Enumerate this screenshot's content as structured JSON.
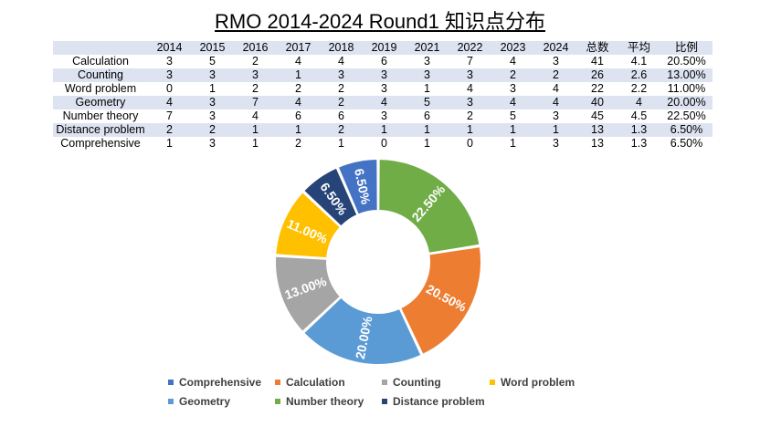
{
  "title": "RMO 2014-2024 Round1 知识点分布",
  "table": {
    "headers": [
      "",
      "2014",
      "2015",
      "2016",
      "2017",
      "2018",
      "2019",
      "2021",
      "2022",
      "2023",
      "2024",
      "总数",
      "平均",
      "比例"
    ],
    "rows": [
      [
        "Calculation",
        "3",
        "5",
        "2",
        "4",
        "4",
        "6",
        "3",
        "7",
        "4",
        "3",
        "41",
        "4.1",
        "20.50%"
      ],
      [
        "Counting",
        "3",
        "3",
        "3",
        "1",
        "3",
        "3",
        "3",
        "3",
        "2",
        "2",
        "26",
        "2.6",
        "13.00%"
      ],
      [
        "Word problem",
        "0",
        "1",
        "2",
        "2",
        "2",
        "3",
        "1",
        "4",
        "3",
        "4",
        "22",
        "2.2",
        "11.00%"
      ],
      [
        "Geometry",
        "4",
        "3",
        "7",
        "4",
        "2",
        "4",
        "5",
        "3",
        "4",
        "4",
        "40",
        "4",
        "20.00%"
      ],
      [
        "Number theory",
        "7",
        "3",
        "4",
        "6",
        "6",
        "3",
        "6",
        "2",
        "5",
        "3",
        "45",
        "4.5",
        "22.50%"
      ],
      [
        "Distance problem",
        "2",
        "2",
        "1",
        "1",
        "2",
        "1",
        "1",
        "1",
        "1",
        "1",
        "13",
        "1.3",
        "6.50%"
      ],
      [
        "Comprehensive",
        "1",
        "3",
        "1",
        "2",
        "1",
        "0",
        "1",
        "0",
        "1",
        "3",
        "13",
        "1.3",
        "6.50%"
      ]
    ]
  },
  "chart_data": {
    "type": "pie",
    "style": "donut",
    "slices": [
      {
        "name": "Number theory",
        "value": 22.5,
        "label": "22.50%",
        "color": "#70ad47"
      },
      {
        "name": "Calculation",
        "value": 20.5,
        "label": "20.50%",
        "color": "#ed7d31"
      },
      {
        "name": "Geometry",
        "value": 20.0,
        "label": "20.00%",
        "color": "#5b9bd5"
      },
      {
        "name": "Counting",
        "value": 13.0,
        "label": "13.00%",
        "color": "#a5a5a5"
      },
      {
        "name": "Word problem",
        "value": 11.0,
        "label": "11.00%",
        "color": "#ffc000"
      },
      {
        "name": "Distance problem",
        "value": 6.5,
        "label": "6.50%",
        "color": "#264478"
      },
      {
        "name": "Comprehensive",
        "value": 6.5,
        "label": "6.50%",
        "color": "#4472c4"
      }
    ],
    "legend_placement": "bottom",
    "legend": [
      [
        {
          "name": "Comprehensive",
          "color": "#4472c4"
        },
        {
          "name": "Calculation",
          "color": "#ed7d31"
        },
        {
          "name": "Counting",
          "color": "#a5a5a5"
        },
        {
          "name": "Word problem",
          "color": "#ffc000"
        }
      ],
      [
        {
          "name": "Geometry",
          "color": "#5b9bd5"
        },
        {
          "name": "Number theory",
          "color": "#70ad47"
        },
        {
          "name": "Distance problem",
          "color": "#264478"
        }
      ]
    ]
  }
}
